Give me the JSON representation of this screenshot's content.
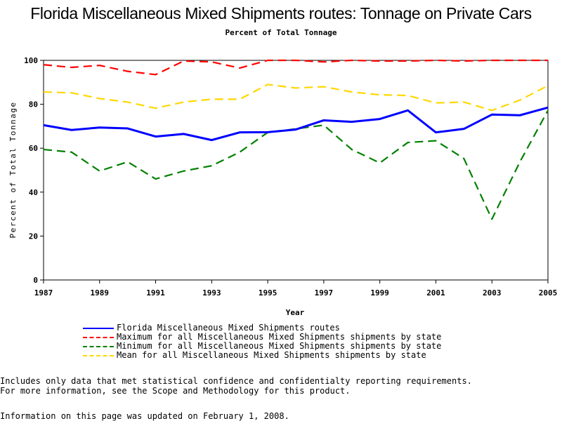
{
  "chart_data": {
    "type": "line",
    "title": "Florida Miscellaneous Mixed Shipments routes: Tonnage on Private Cars",
    "subtitle": "Percent of Total Tonnage",
    "xlabel": "Year",
    "ylabel": "Percent of Total Tonnage",
    "xlim": [
      1987,
      2005
    ],
    "ylim": [
      0,
      100
    ],
    "x_ticks": [
      "1987",
      "1989",
      "1991",
      "1993",
      "1995",
      "1997",
      "1999",
      "2001",
      "2003",
      "2005"
    ],
    "y_ticks": [
      "0",
      "20",
      "40",
      "60",
      "80",
      "100"
    ],
    "grid": false,
    "legend_position": "bottom",
    "x": [
      1987,
      1988,
      1989,
      1990,
      1991,
      1992,
      1993,
      1994,
      1995,
      1996,
      1997,
      1998,
      1999,
      2000,
      2001,
      2002,
      2003,
      2004,
      2005
    ],
    "series": [
      {
        "name": "Florida Miscellaneous Mixed Shipments routes",
        "color": "#0000ff",
        "dash": "solid",
        "values": [
          70.5,
          68.3,
          69.4,
          69.0,
          65.3,
          66.5,
          63.7,
          67.2,
          67.3,
          68.5,
          72.7,
          72.0,
          73.3,
          77.2,
          67.2,
          68.8,
          75.3,
          75.0,
          78.5
        ]
      },
      {
        "name": "Maximum for all Miscellaneous Mixed Shipments shipments by state",
        "color": "#ff0000",
        "dash": "dashed",
        "values": [
          98.0,
          96.8,
          97.7,
          95.0,
          93.5,
          99.7,
          99.3,
          96.5,
          100.0,
          100.0,
          99.3,
          100.0,
          99.7,
          99.7,
          100.0,
          99.7,
          100.0,
          100.0,
          100.0
        ]
      },
      {
        "name": "Minimum for all Miscellaneous Mixed Shipments shipments by state",
        "color": "#008000",
        "dash": "dashed",
        "values": [
          59.4,
          58.2,
          49.6,
          53.8,
          46.0,
          49.6,
          52.0,
          58.2,
          67.2,
          68.8,
          70.5,
          59.4,
          53.3,
          62.6,
          63.4,
          55.3,
          27.7,
          53.8,
          77.2
        ]
      },
      {
        "name": "Mean for all Miscellaneous Mixed Shipments shipments by state",
        "color": "#ffd700",
        "dash": "dashed",
        "values": [
          85.6,
          85.2,
          82.6,
          81.0,
          78.2,
          81.0,
          82.3,
          82.3,
          89.0,
          87.4,
          88.0,
          85.6,
          84.3,
          84.0,
          80.6,
          81.0,
          77.2,
          81.9,
          88.5
        ]
      }
    ]
  },
  "notes": [
    "Includes only data that met statistical confidence and confidentialty reporting requirements.",
    "For more information, see the Scope and Methodology for this product."
  ],
  "updated": "Information on this page was updated on February 1, 2008."
}
